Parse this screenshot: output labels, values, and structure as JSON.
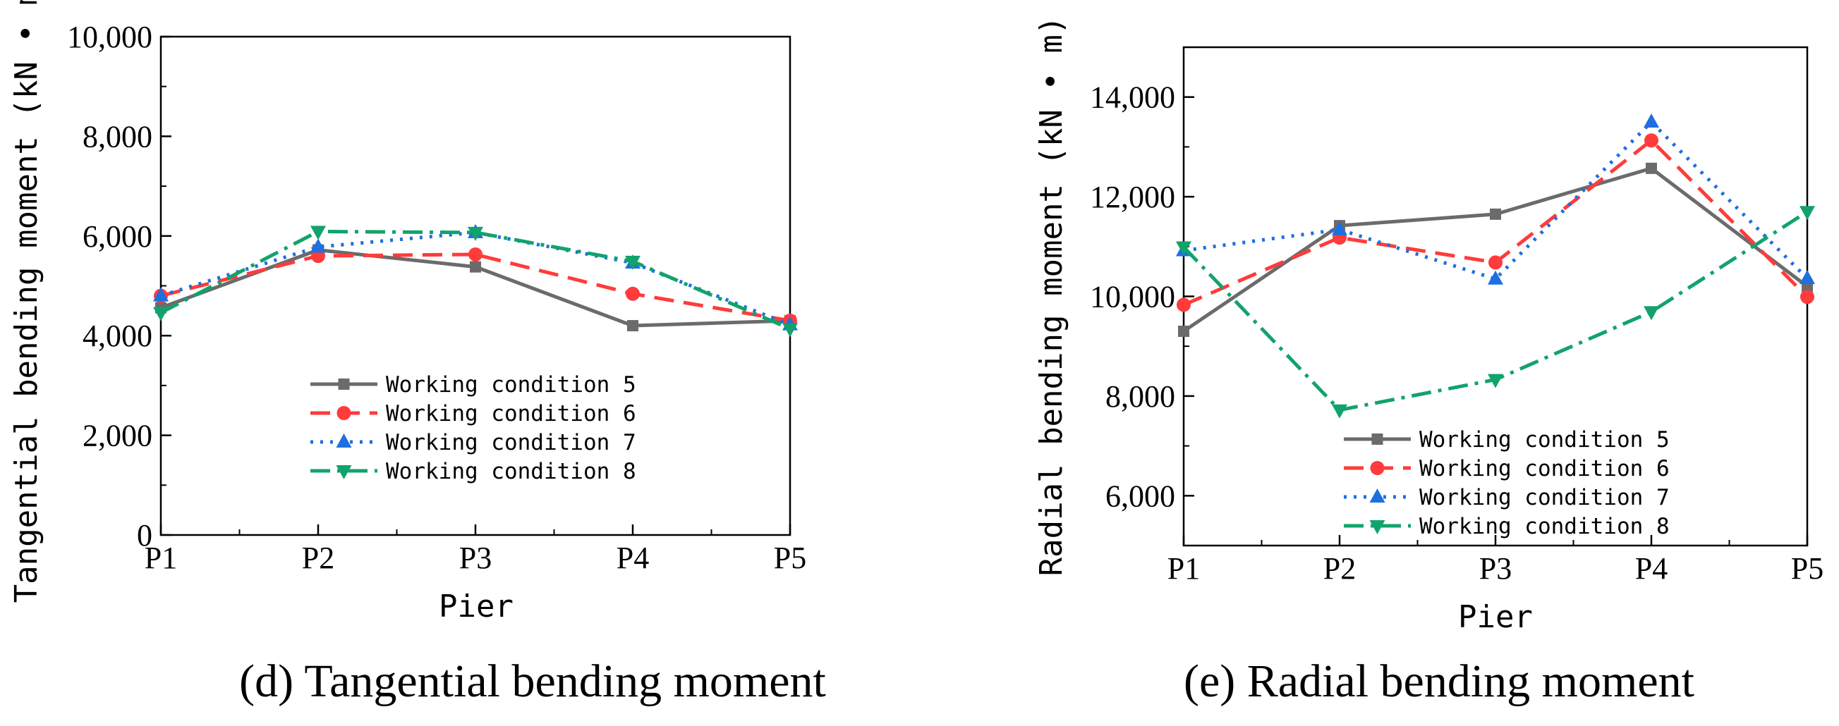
{
  "chart_data": [
    {
      "type": "line",
      "title": "",
      "caption": "(d) Tangential bending moment",
      "xlabel": "Pier",
      "ylabel": "Tangential bending moment (kN • m)",
      "categories": [
        "P1",
        "P2",
        "P3",
        "P4",
        "P5"
      ],
      "ylim": [
        0,
        10000
      ],
      "yticks": [
        0,
        2000,
        4000,
        6000,
        8000,
        10000
      ],
      "ytick_labels": [
        "0",
        "2,000",
        "4,000",
        "6,000",
        "8,000",
        "10,000"
      ],
      "legend_position": "center",
      "grid": false,
      "series": [
        {
          "name": "Working condition 5",
          "values": [
            4560,
            5720,
            5380,
            4200,
            4300
          ]
        },
        {
          "name": "Working condition 6",
          "values": [
            4800,
            5600,
            5630,
            4840,
            4300
          ]
        },
        {
          "name": "Working condition 7",
          "values": [
            4800,
            5780,
            6070,
            5460,
            4220
          ]
        },
        {
          "name": "Working condition 8",
          "values": [
            4460,
            6090,
            6070,
            5490,
            4140
          ]
        }
      ]
    },
    {
      "type": "line",
      "title": "",
      "caption": "(e) Radial bending moment",
      "xlabel": "Pier",
      "ylabel": "Radial bending moment (kN • m)",
      "categories": [
        "P1",
        "P2",
        "P3",
        "P4",
        "P5"
      ],
      "ylim": [
        5000,
        15000
      ],
      "yticks": [
        6000,
        8000,
        10000,
        12000,
        14000
      ],
      "ytick_labels": [
        "6,000",
        "8,000",
        "10,000",
        "12,000",
        "14,000"
      ],
      "legend_position": "lower-center",
      "grid": false,
      "series": [
        {
          "name": "Working condition 5",
          "values": [
            9300,
            11420,
            11650,
            12570,
            10200
          ]
        },
        {
          "name": "Working condition 6",
          "values": [
            9830,
            11180,
            10680,
            13130,
            9990
          ]
        },
        {
          "name": "Working condition 7",
          "values": [
            10920,
            11340,
            10350,
            13500,
            10360
          ]
        },
        {
          "name": "Working condition 8",
          "values": [
            10990,
            7720,
            8330,
            9690,
            11700
          ]
        }
      ]
    }
  ],
  "series_styles": [
    {
      "color": "#6b6b6b",
      "dash": "none",
      "marker": "square"
    },
    {
      "color": "#ff3b3b",
      "dash": "28,14",
      "marker": "circle"
    },
    {
      "color": "#1f6fe0",
      "dash": "4,10",
      "marker": "triangle-up"
    },
    {
      "color": "#11a36b",
      "dash": "28,10,5,10",
      "marker": "triangle-down"
    }
  ]
}
